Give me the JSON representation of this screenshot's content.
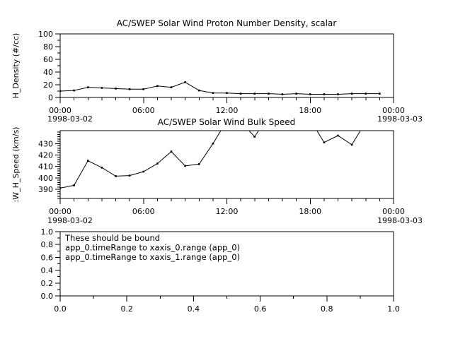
{
  "app": {
    "background_color": "#ffffff",
    "foreground_color": "#000000"
  },
  "chart_data": [
    {
      "type": "line",
      "title": "AC/SWEP  Solar Wind Proton Number Density, scalar",
      "ylabel": "H_Density (#/cc)",
      "ylim": [
        0,
        100
      ],
      "yticks": {
        "values": [
          0,
          20,
          40,
          60,
          80,
          100
        ],
        "labels": [
          "0",
          "20",
          "40",
          "60",
          "80",
          "100"
        ],
        "minor_step": 10
      },
      "xlim": [
        0,
        24
      ],
      "xticks": {
        "values": [
          0,
          6,
          12,
          18,
          24
        ],
        "labels": [
          "00:00",
          "06:00",
          "12:00",
          "18:00",
          "00:00"
        ],
        "minor_step": 1
      },
      "x_start_date": "1998-03-02",
      "x_end_date": "1998-03-03",
      "x_hours": [
        0,
        1,
        2,
        3,
        4,
        5,
        6,
        7,
        8,
        9,
        10,
        11,
        12,
        13,
        14,
        15,
        16,
        17,
        18,
        19,
        20,
        21,
        22,
        23
      ],
      "values": [
        10,
        11,
        16,
        15,
        14,
        13,
        13,
        18,
        16,
        24,
        11,
        7,
        7,
        6,
        6,
        6,
        5,
        6,
        5,
        5,
        5,
        6,
        6,
        6
      ],
      "marker": "square",
      "line_color": "#000000"
    },
    {
      "type": "line",
      "title": "AC/SWEP  Solar Wind Bulk Speed",
      "ylabel": ":W_H_Speed (km/s)",
      "ylim": [
        382,
        441.3
      ],
      "yticks": {
        "values": [
          390,
          400,
          410,
          420,
          430
        ],
        "labels": [
          "390",
          "400",
          "410",
          "420",
          "430"
        ],
        "minor_step": 2
      },
      "xlim": [
        0,
        24
      ],
      "xticks": {
        "values": [
          0,
          6,
          12,
          18,
          24
        ],
        "labels": [
          "00:00",
          "06:00",
          "12:00",
          "18:00",
          "00:00"
        ],
        "minor_step": 1
      },
      "x_start_date": "1998-03-02",
      "x_end_date": "1998-03-03",
      "x_hours": [
        0,
        1,
        2,
        3,
        4,
        5,
        6,
        7,
        8,
        9,
        10,
        11,
        12,
        13,
        14,
        15,
        16,
        17,
        18,
        19,
        20,
        21,
        22,
        23
      ],
      "values": [
        391,
        393.5,
        415,
        409,
        401.5,
        402,
        405.5,
        412.5,
        423,
        410.5,
        412,
        430,
        450,
        449,
        436,
        455,
        460,
        458,
        451,
        431,
        437,
        429,
        449,
        452
      ],
      "clipped_above_ymax_hours": [
        12,
        13,
        15,
        16,
        17,
        18,
        22,
        23
      ],
      "marker": "square",
      "line_color": "#000000"
    },
    {
      "type": "empty",
      "title": "",
      "ylabel": "",
      "ylim": [
        0,
        1
      ],
      "yticks": {
        "values": [
          0,
          0.2,
          0.4,
          0.6,
          0.8,
          1.0
        ],
        "labels": [
          "0.0",
          "0.2",
          "0.4",
          "0.6",
          "0.8",
          "1.0"
        ],
        "minor_step": 0.1
      },
      "xlim": [
        0,
        1
      ],
      "xticks": {
        "values": [
          0,
          0.2,
          0.4,
          0.6,
          0.8,
          1.0
        ],
        "labels": [
          "0.0",
          "0.2",
          "0.4",
          "0.6",
          "0.8",
          "1.0"
        ],
        "minor_step": 0.1
      },
      "annotation_lines": [
        "These should be bound",
        "app_0.timeRange to xaxis_0.range  (app_0)",
        "app_0.timeRange to xaxis_1.range  (app_0)"
      ]
    }
  ]
}
